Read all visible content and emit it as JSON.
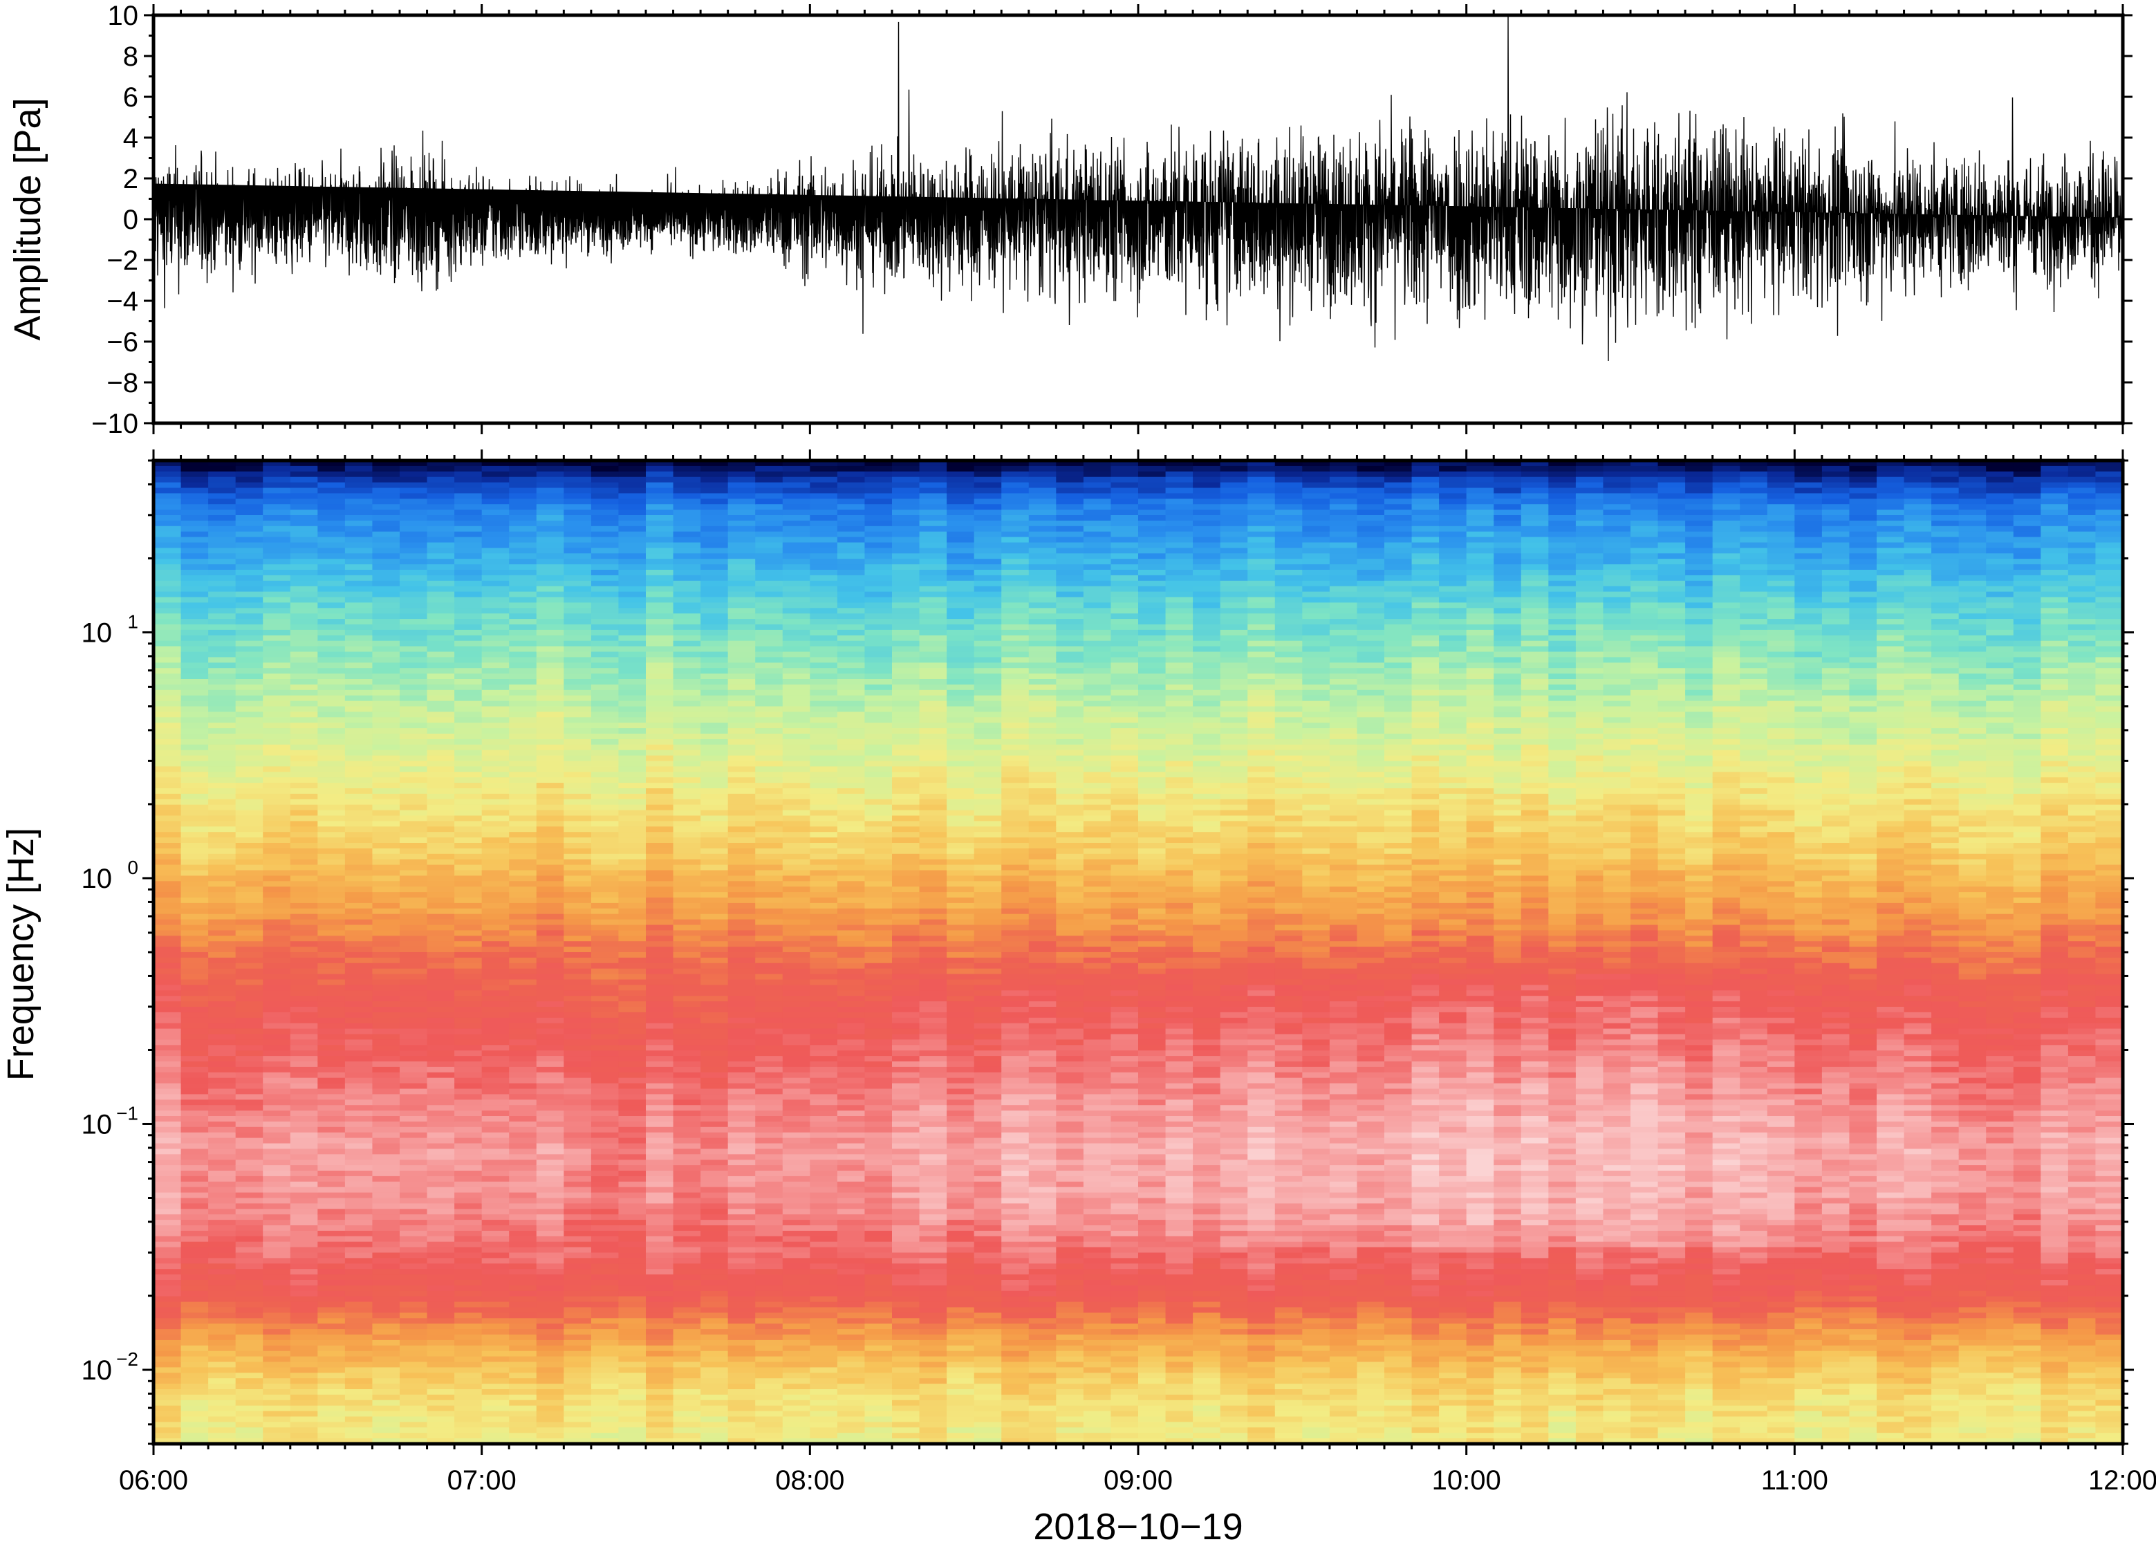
{
  "chart_data": [
    {
      "type": "line",
      "panel": "waveform",
      "xlabel": "",
      "ylabel": "Amplitude [Pa]",
      "ylim": [
        -10,
        10
      ],
      "y_ticks": [
        -10,
        -8,
        -6,
        -4,
        -2,
        0,
        2,
        4,
        6,
        8,
        10
      ],
      "y_tick_labels": [
        "−10",
        "−8",
        "−6",
        "−4",
        "−2",
        "0",
        "2",
        "4",
        "6",
        "8",
        "10"
      ],
      "x_range_hours": [
        6,
        12
      ],
      "envelope_hours": [
        6.0,
        6.25,
        6.5,
        6.75,
        7.0,
        7.25,
        7.5,
        7.75,
        8.0,
        8.25,
        8.5,
        8.75,
        9.0,
        9.25,
        9.5,
        9.75,
        10.0,
        10.25,
        10.5,
        10.75,
        11.0,
        11.25,
        11.5,
        11.75,
        12.0
      ],
      "envelope_pa": [
        4.5,
        3.2,
        3.0,
        4.2,
        3.0,
        2.3,
        1.8,
        2.2,
        3.5,
        4.0,
        4.5,
        4.8,
        5.0,
        5.5,
        5.2,
        5.8,
        6.5,
        6.2,
        7.0,
        6.0,
        5.2,
        4.8,
        4.2,
        3.8,
        4.5
      ],
      "color": "#000000"
    },
    {
      "type": "heatmap",
      "panel": "spectrogram",
      "xlabel": "2018−10−19",
      "ylabel": "Frequency [Hz]",
      "y_scale": "log",
      "ylim": [
        0.005,
        50
      ],
      "y_ticks": [
        0.01,
        0.1,
        1,
        10
      ],
      "y_tick_labels": [
        {
          "base": "10",
          "exp": "−2"
        },
        {
          "base": "10",
          "exp": "−1"
        },
        {
          "base": "10",
          "exp": "0"
        },
        {
          "base": "10",
          "exp": "1"
        }
      ],
      "x_ticks": [
        "06:00",
        "07:00",
        "08:00",
        "09:00",
        "10:00",
        "11:00",
        "12:00"
      ],
      "colormap": [
        "#000033",
        "#0a2a9a",
        "#1560e0",
        "#2a90ee",
        "#44c4e8",
        "#7ee4c4",
        "#c8f2a0",
        "#f3ec84",
        "#f7c258",
        "#f59a48",
        "#ee6252",
        "#ef5a5a",
        "#f69a9a",
        "#fbd0d0",
        "#fdf0f0"
      ],
      "level_by_log10_frequency": {
        "log10_f": [
          1.7,
          1.6,
          1.5,
          1.3,
          1.1,
          0.9,
          0.7,
          0.5,
          0.3,
          0.1,
          0.0,
          -0.15,
          -0.3,
          -0.5,
          -0.7,
          -0.9,
          -1.1,
          -1.3,
          -1.5,
          -1.6,
          -1.7,
          -1.8,
          -1.9,
          -2.0,
          -2.1,
          -2.3
        ],
        "level": [
          0.0,
          0.12,
          0.2,
          0.26,
          0.33,
          0.38,
          0.43,
          0.47,
          0.52,
          0.56,
          0.6,
          0.64,
          0.7,
          0.76,
          0.8,
          0.84,
          0.87,
          0.86,
          0.82,
          0.78,
          0.75,
          0.68,
          0.62,
          0.57,
          0.53,
          0.5
        ]
      }
    }
  ]
}
